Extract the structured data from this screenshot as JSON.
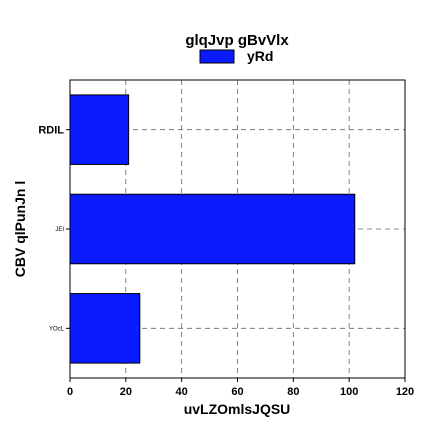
{
  "chart_data": {
    "type": "bar",
    "orientation": "horizontal",
    "title": "glqJvp gBvVlx",
    "xlabel": "uvLZOmlsJQSU",
    "ylabel": "CBV qlPunJn l",
    "categories": [
      "YOcL",
      "JEI",
      "RDIL"
    ],
    "series": [
      {
        "name": "yRd",
        "values": [
          25,
          102,
          21
        ]
      }
    ],
    "xlim": [
      0,
      120
    ],
    "xticks": [
      "0",
      "20",
      "40",
      "60",
      "80",
      "100",
      "120"
    ],
    "grid": true,
    "legend_position": "top-center",
    "colors": {
      "bar": "#0a1cff",
      "edge": "#000000"
    }
  }
}
